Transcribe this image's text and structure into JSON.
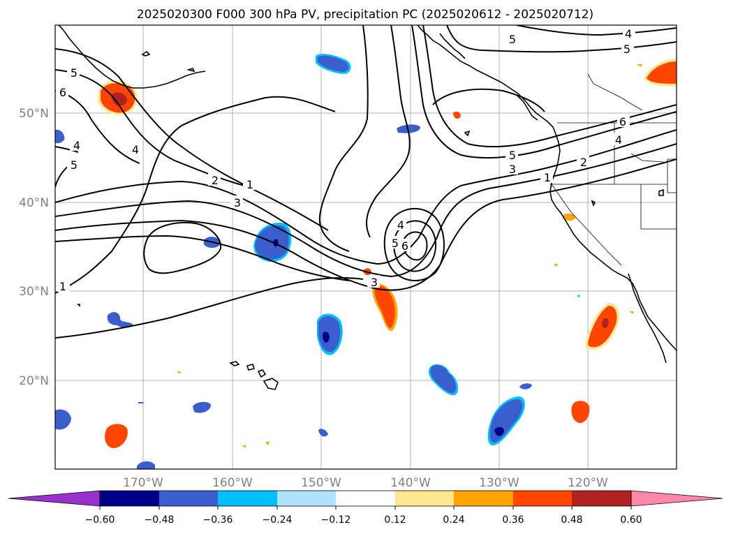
{
  "title": "2025020300 F000 300 hPa PV, precipitation PC (2025020612 - 2025020712)",
  "longitude_labels": [
    "170°W",
    "160°W",
    "150°W",
    "140°W",
    "130°W",
    "120°W"
  ],
  "latitude_labels": [
    "50°N",
    "40°N",
    "30°N",
    "20°N"
  ],
  "pv_contour_labels": [
    "1",
    "2",
    "3",
    "4",
    "5",
    "6"
  ],
  "colorbar": {
    "ticks": [
      "−0.60",
      "−0.48",
      "−0.36",
      "−0.24",
      "−0.12",
      "0.12",
      "0.24",
      "0.36",
      "0.48",
      "0.60"
    ],
    "colors": [
      "#9932cc",
      "#00008b",
      "#3a5fcd",
      "#00bfff",
      "#b0e2ff",
      "#ffffff",
      "#ffe890",
      "#ffa500",
      "#ff4500",
      "#b22222",
      "#ff88aa"
    ]
  }
}
